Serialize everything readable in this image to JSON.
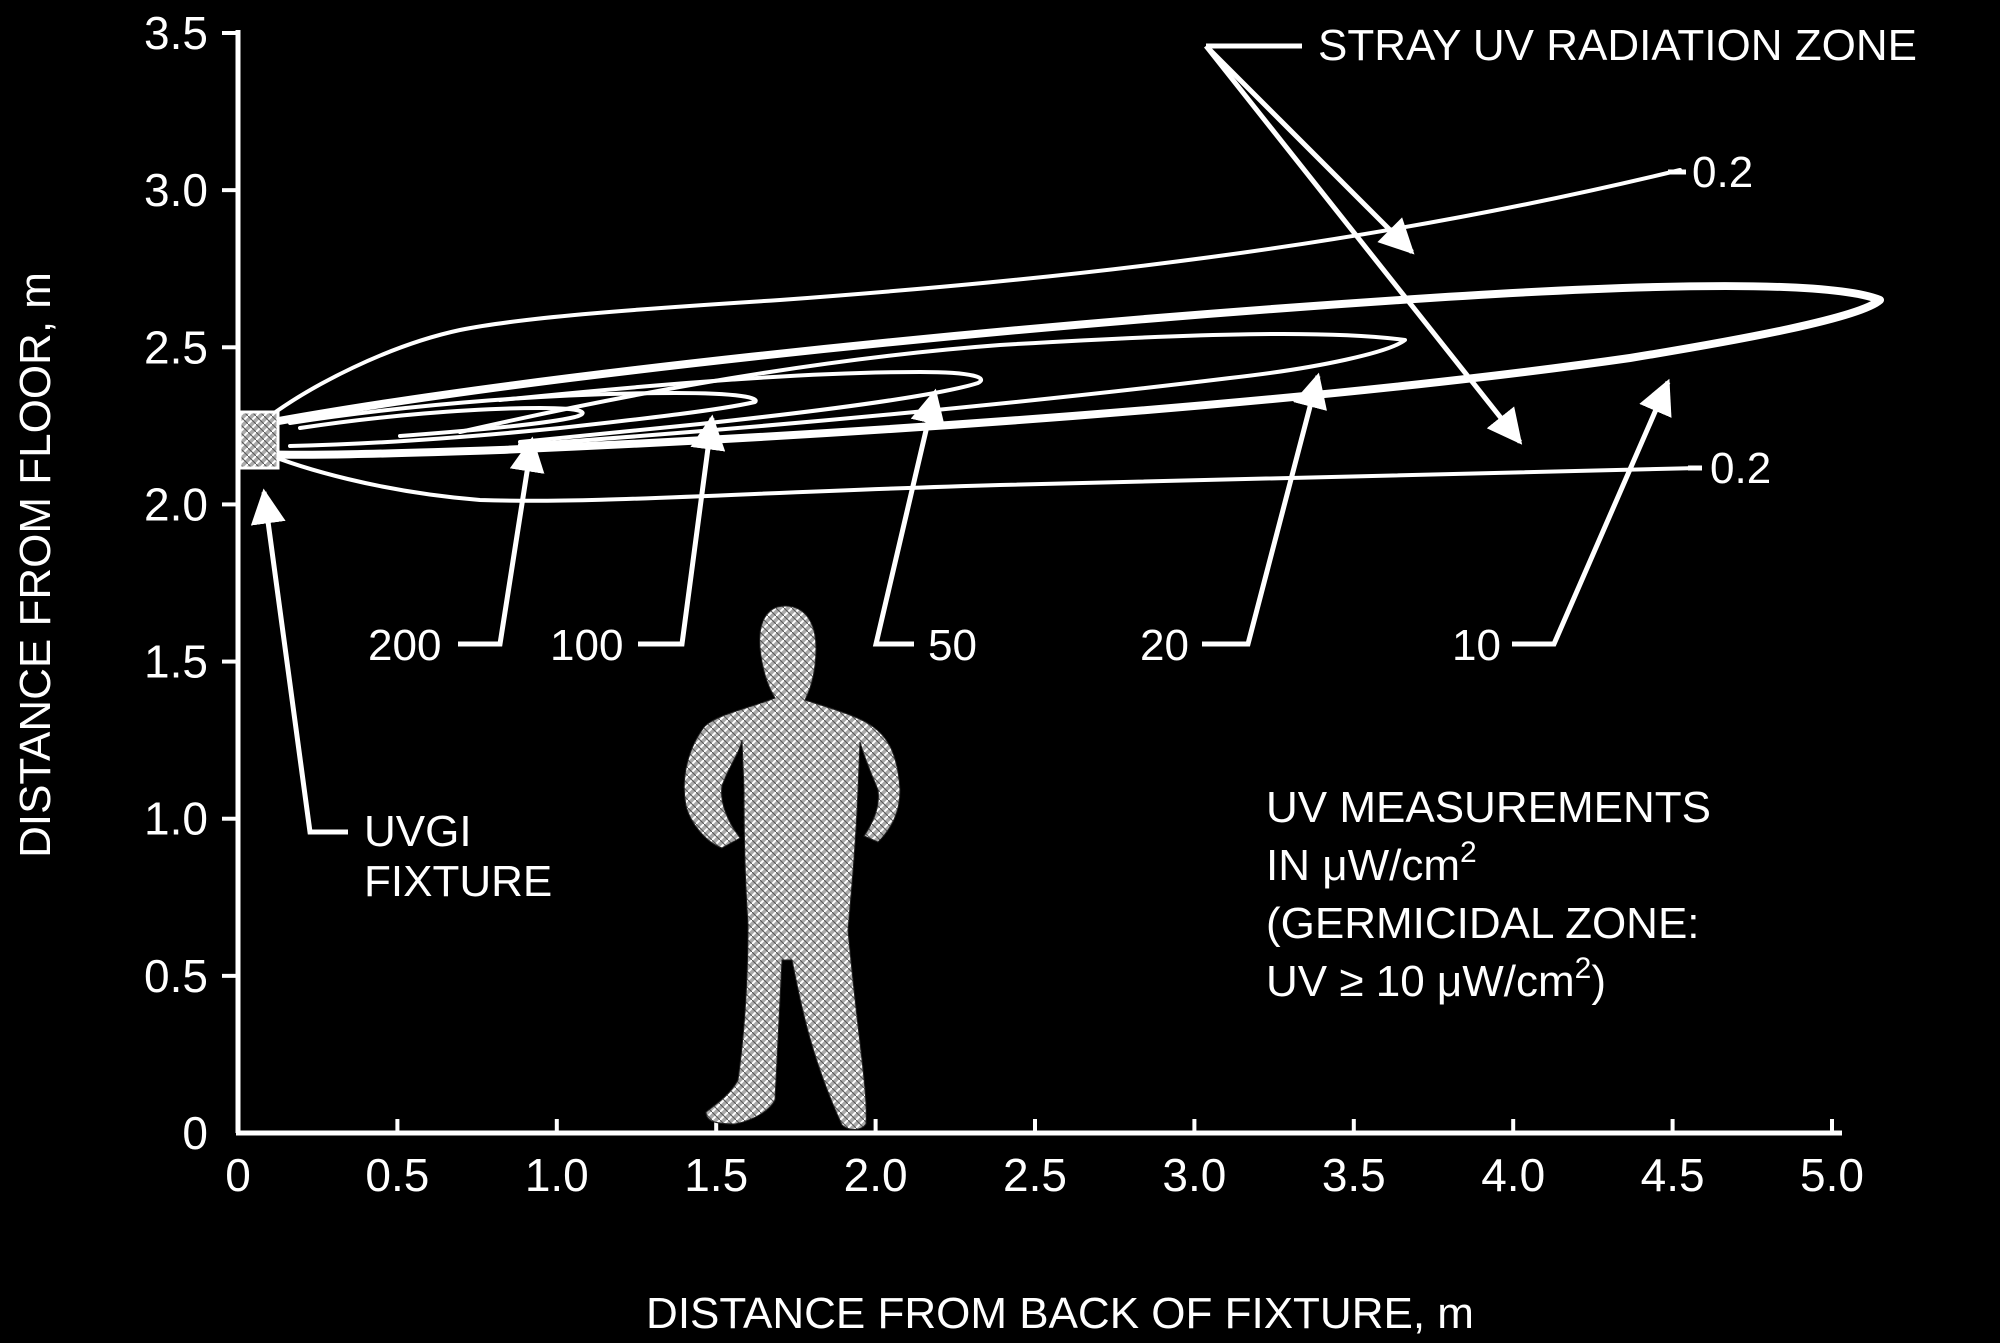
{
  "chart_data": {
    "type": "contour",
    "x_axis": {
      "label": "DISTANCE FROM BACK OF FIXTURE, m",
      "range": [
        0,
        5.0
      ],
      "ticks": [
        "0",
        "0.5",
        "1.0",
        "1.5",
        "2.0",
        "2.5",
        "3.0",
        "3.5",
        "4.0",
        "4.5",
        "5.0"
      ]
    },
    "y_axis": {
      "label": "DISTANCE FROM FLOOR, m",
      "range": [
        0,
        3.5
      ],
      "ticks": [
        "0",
        "0.5",
        "1.0",
        "1.5",
        "2.0",
        "2.5",
        "3.0",
        "3.5"
      ]
    },
    "grid": false,
    "contours": [
      {
        "level": "0.2",
        "x": [
          0.05,
          0.3,
          1.0,
          1.5,
          2.5,
          3.5,
          4.3,
          4.9
        ],
        "upper_y": [
          2.24,
          2.42,
          2.58,
          2.62,
          2.72,
          2.84,
          2.96,
          3.05
        ],
        "lower_y": [
          2.16,
          2.07,
          2.0,
          2.0,
          2.04,
          2.07,
          2.09,
          2.11
        ]
      },
      {
        "level": "10",
        "tip_x": 5.3,
        "tip_y": 2.64
      },
      {
        "level": "20",
        "tip_x": 3.75,
        "tip_y": 2.5
      },
      {
        "level": "50",
        "tip_x": 2.4,
        "tip_y": 2.39
      },
      {
        "level": "100",
        "tip_x": 1.7,
        "tip_y": 2.33
      },
      {
        "level": "200",
        "tip_x": 1.1,
        "tip_y": 2.28
      }
    ],
    "labels": {
      "zone": "STRAY UV RADIATION ZONE",
      "fixture_line1": "UVGI",
      "fixture_line2": "FIXTURE",
      "contour_upper": "0.2",
      "contour_lower": "0.2",
      "c200": "200",
      "c100": "100",
      "c50": "50",
      "c20": "20",
      "c10": "10"
    },
    "note": {
      "line1": "UV MEASUREMENTS",
      "line2_prefix": "IN μW/cm",
      "line2_sup": "2",
      "line3": "(GERMICIDAL ZONE:",
      "line4_prefix": "UV ≥ 10 μW/cm",
      "line4_sup": "2",
      "line4_suffix": ")"
    }
  }
}
